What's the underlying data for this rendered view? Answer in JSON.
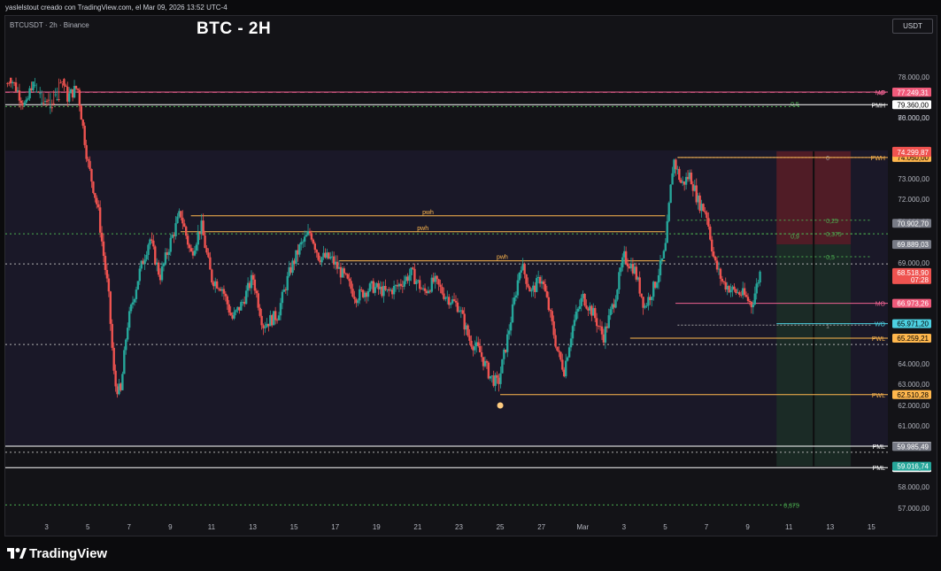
{
  "header": {
    "text": "yaslelstout creado con TradingView.com, el Mar 09, 2026 13:52 UTC-4",
    "symbol": "BTCUSDT · 2h · Binance",
    "currency_button": "USDT",
    "logo_text": "TradingView"
  },
  "chart_data": {
    "type": "candlestick",
    "title": "BTC - 2H",
    "ylim": [
      56000,
      81000
    ],
    "y_ticks": [
      "80.000,00",
      "78.000,00",
      "76.000,00",
      "73.000,00",
      "72.000,00",
      "71.000,00",
      "69.000,00",
      "67.000,00",
      "64.000,00",
      "63.000,00",
      "62.000,00",
      "61.000,00",
      "58.000,00",
      "57.000,00"
    ],
    "y_tick_values": [
      80000,
      78000,
      76000,
      73000,
      72000,
      71000,
      69000,
      67000,
      64000,
      63000,
      62000,
      61000,
      58000,
      57000
    ],
    "x_ticks": [
      "3",
      "5",
      "7",
      "9",
      "11",
      "13",
      "15",
      "17",
      "19",
      "21",
      "23",
      "25",
      "27",
      "Mar",
      "3",
      "5",
      "7",
      "9",
      "11",
      "13",
      "15"
    ],
    "x_tick_pos": [
      0,
      2,
      4,
      6,
      8,
      10,
      12,
      14,
      16,
      18,
      20,
      22,
      24,
      26,
      28,
      30,
      32,
      34,
      36,
      38,
      40
    ],
    "x_range": [
      -2,
      40.8
    ],
    "last_day": 34.6,
    "anchors": [
      [
        -1.9,
        78300
      ],
      [
        -1.0,
        76500
      ],
      [
        -0.5,
        78600
      ],
      [
        0.0,
        79300
      ],
      [
        0.5,
        79000
      ],
      [
        1.0,
        77000
      ],
      [
        1.5,
        77500
      ],
      [
        2.0,
        73800
      ],
      [
        2.5,
        71500
      ],
      [
        3.0,
        67500
      ],
      [
        3.3,
        63000
      ],
      [
        3.6,
        62600
      ],
      [
        3.9,
        65800
      ],
      [
        4.5,
        68500
      ],
      [
        5.0,
        70200
      ],
      [
        5.5,
        68300
      ],
      [
        6.0,
        70000
      ],
      [
        6.5,
        71400
      ],
      [
        7.0,
        69400
      ],
      [
        7.5,
        70800
      ],
      [
        8.0,
        68200
      ],
      [
        8.5,
        67800
      ],
      [
        9.0,
        66200
      ],
      [
        9.5,
        67000
      ],
      [
        10.0,
        68300
      ],
      [
        10.5,
        65900
      ],
      [
        11.2,
        66400
      ],
      [
        11.8,
        68600
      ],
      [
        12.3,
        69800
      ],
      [
        12.8,
        70500
      ],
      [
        13.2,
        69300
      ],
      [
        13.8,
        69200
      ],
      [
        14.5,
        68200
      ],
      [
        15.0,
        67300
      ],
      [
        15.8,
        67800
      ],
      [
        16.5,
        67500
      ],
      [
        17.0,
        67800
      ],
      [
        17.7,
        68500
      ],
      [
        18.3,
        67500
      ],
      [
        18.8,
        68100
      ],
      [
        19.3,
        67400
      ],
      [
        20.0,
        66800
      ],
      [
        20.5,
        65200
      ],
      [
        21.0,
        64600
      ],
      [
        21.5,
        63400
      ],
      [
        21.9,
        63000
      ],
      [
        22.3,
        65000
      ],
      [
        22.7,
        67200
      ],
      [
        23.0,
        69000
      ],
      [
        23.5,
        67500
      ],
      [
        24.0,
        68300
      ],
      [
        24.4,
        66500
      ],
      [
        24.8,
        64500
      ],
      [
        25.1,
        63700
      ],
      [
        25.5,
        65800
      ],
      [
        26.0,
        67300
      ],
      [
        26.5,
        66500
      ],
      [
        27.0,
        65300
      ],
      [
        27.5,
        67000
      ],
      [
        28.0,
        69300
      ],
      [
        28.5,
        68700
      ],
      [
        29.0,
        66800
      ],
      [
        29.5,
        67900
      ],
      [
        30.0,
        69600
      ],
      [
        30.4,
        74000
      ],
      [
        30.8,
        72700
      ],
      [
        31.2,
        73200
      ],
      [
        31.6,
        71900
      ],
      [
        32.0,
        71400
      ],
      [
        32.4,
        69000
      ],
      [
        32.8,
        68000
      ],
      [
        33.3,
        67600
      ],
      [
        33.8,
        67400
      ],
      [
        34.2,
        66900
      ],
      [
        34.6,
        68500
      ]
    ],
    "levels": [
      {
        "price": 79360,
        "start": -2.0,
        "label": "PMH",
        "tag": "79.360,00",
        "color": "#ffffff",
        "style": "solid",
        "tag_fill": "#ffffff",
        "tag_text": "#000000"
      },
      {
        "price": 78741.1,
        "start": -2.0,
        "label": "MO",
        "tag": "78.741,10",
        "color": "#f06292",
        "style": "solid",
        "tag_fill": "#ef5a7a",
        "tag_text": "#ffffff"
      },
      {
        "price": 77249.31,
        "start": -2.0,
        "label": "AF",
        "tag": "77.249,31",
        "color": "#f06292",
        "style": "dashed",
        "tag_fill": "#ef5a7a",
        "tag_text": "#ffffff"
      },
      {
        "price": 74050,
        "start": 30.6,
        "label": "PWH",
        "tag": "74.050,00",
        "color": "#ffb74d",
        "style": "solid",
        "tag_fill": "#ffb74d",
        "tag_text": "#000000"
      },
      {
        "price": 66973.26,
        "start": 30.5,
        "label": "MO",
        "tag": "66.973,26",
        "color": "#f06292",
        "style": "solid",
        "tag_fill": "#ef5a7a",
        "tag_text": "#ffffff"
      },
      {
        "price": 65971.2,
        "start": 35.4,
        "label": "WO",
        "tag": "65.971,20",
        "color": "#4dd0e1",
        "style": "solid",
        "tag_fill": "#4dd0e1",
        "tag_text": "#000000"
      },
      {
        "price": 65259.21,
        "start": 28.3,
        "label": "PWL",
        "tag": "65.259,21",
        "color": "#ffb74d",
        "style": "solid",
        "tag_fill": "#ffb74d",
        "tag_text": "#000000"
      },
      {
        "price": 62510.28,
        "start": 22.0,
        "label": "PWL",
        "tag": "62.510,28",
        "color": "#ffb74d",
        "style": "solid",
        "tag_fill": "#ffb74d",
        "tag_text": "#000000"
      },
      {
        "price": 60000,
        "start": -2.0,
        "label": "PML",
        "tag": "60.000,00",
        "color": "#ffffff",
        "style": "solid",
        "tag_fill": "#ffffff",
        "tag_text": "#000000"
      },
      {
        "price": 58946,
        "start": -2.0,
        "label": "PML",
        "tag": "58.946,00",
        "color": "#ffffff",
        "style": "solid",
        "tag_fill": "#ffffff",
        "tag_text": "#000000"
      }
    ],
    "price_tags": [
      {
        "price": 74354.66,
        "tag": "74.354,66",
        "fill": "#ef5350",
        "text": "#ffffff"
      },
      {
        "price": 74299.87,
        "tag": "74.299,87",
        "fill": "#ef5350",
        "text": "#ffffff"
      },
      {
        "price": 70902.7,
        "tag": "70.902,70",
        "fill": "#787b86",
        "text": "#ffffff"
      },
      {
        "price": 69889.03,
        "tag": "69.889,03",
        "fill": "#787b86",
        "text": "#ffffff"
      },
      {
        "price": 68518.9,
        "tag": "68.518,90",
        "sub": "07:28",
        "fill": "#ef5350",
        "text": "#ffffff"
      },
      {
        "price": 59985.49,
        "tag": "59.985,49",
        "fill": "#787b86",
        "text": "#ffffff"
      },
      {
        "price": 59016.74,
        "tag": "59.016,74",
        "fill": "#26a69a",
        "text": "#ffffff"
      }
    ],
    "pwh_lines": [
      {
        "price": 71250,
        "start": 7.0,
        "end": 30.0,
        "label": "pwh"
      },
      {
        "price": 70500,
        "start": 6.5,
        "end": 30.0,
        "label": "pwh"
      },
      {
        "price": 69100,
        "start": 14.2,
        "end": 30.0,
        "label": "pwh"
      }
    ],
    "fib_levels": [
      {
        "price": 74050,
        "label": "0"
      },
      {
        "price": 71050,
        "label": "0,25",
        "dotted": true
      },
      {
        "price": 70400,
        "label": "0,375",
        "dotted": true
      },
      {
        "price": 69300,
        "label": "0,5",
        "dotted": true
      },
      {
        "price": 65900,
        "label": "1"
      }
    ],
    "extra_labels": [
      {
        "price": 79300,
        "x": 36.5,
        "label": "0,5"
      },
      {
        "price": 70300,
        "x": 36.5,
        "label": "0,9"
      },
      {
        "price": 57150,
        "x": 36.5,
        "label": "0,375"
      }
    ],
    "dotted_levels": [
      {
        "price": 79450,
        "color": "#4caf50",
        "start": -2.0,
        "end": 36.6
      },
      {
        "price": 68950,
        "color": "#b0b0b0",
        "start": -2.0,
        "end": 42
      },
      {
        "price": 70400,
        "color": "#4caf50",
        "start": -2.0,
        "end": 42
      },
      {
        "price": 64950,
        "color": "#b0b0b0",
        "start": -2.0,
        "end": 42
      },
      {
        "price": 59700,
        "color": "#b0b0b0",
        "start": -2.0,
        "end": 42
      },
      {
        "price": 57150,
        "color": "#4caf50",
        "start": -2.0,
        "end": 36.6
      }
    ],
    "position": {
      "start": 35.4,
      "end": 39.0,
      "split": 37.2,
      "entry": 69889.03,
      "stop": 74354.66,
      "target": 59016.74
    }
  }
}
